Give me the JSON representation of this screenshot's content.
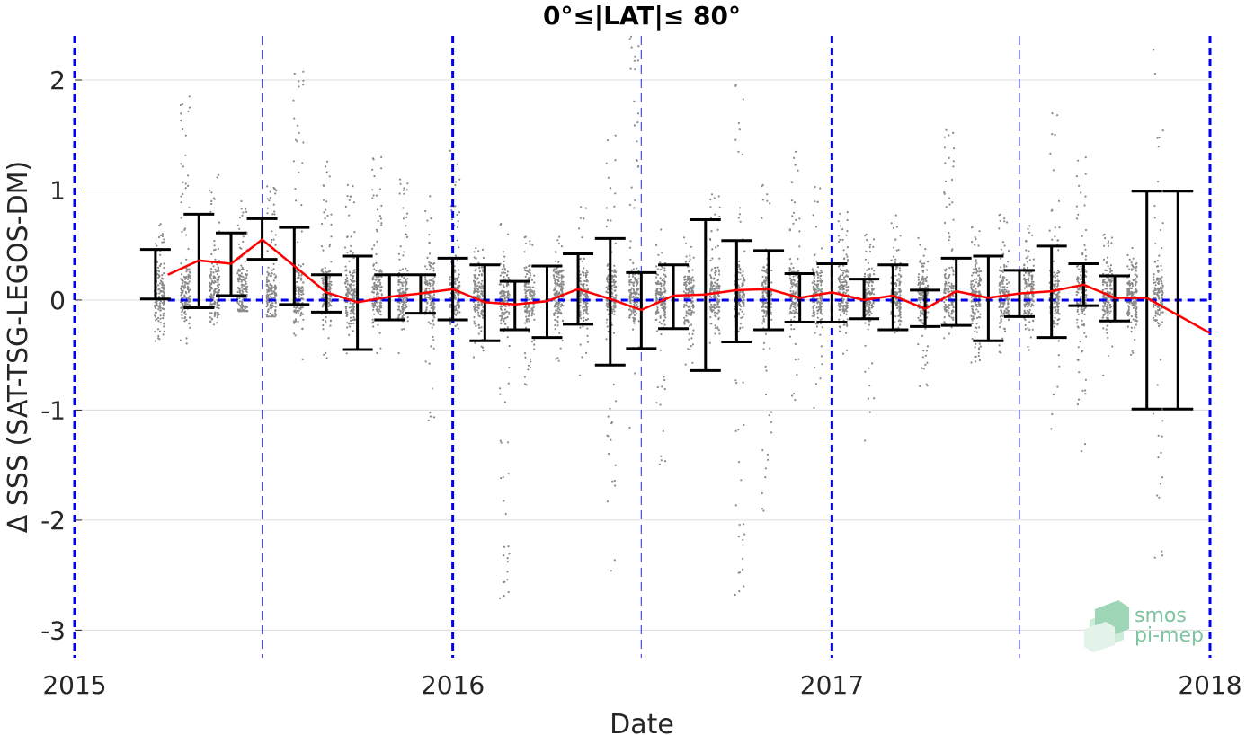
{
  "chart_data": {
    "type": "scatter",
    "title": "0°≤|LAT|≤ 80°",
    "xlabel": "Date",
    "ylabel": "Δ SSS (SAT-TSG-LEGOS-DM)",
    "xlim": [
      "2015-01-01",
      "2018-01-01"
    ],
    "ylim": [
      -3.25,
      2.4
    ],
    "x_tick_labels": [
      "2015",
      "2016",
      "2017",
      "2018"
    ],
    "y_ticks": [
      2,
      1,
      0,
      -1,
      -2,
      -3
    ],
    "y_tick_labels": [
      "2",
      "1",
      "0",
      "-1",
      "-2",
      "-3"
    ],
    "grid": true,
    "year_lines": [
      "2015-01-01",
      "2016-01-01",
      "2017-01-01",
      "2018-01-01"
    ],
    "midyear_lines": [
      "2015-07-01",
      "2016-07-01",
      "2017-07-01"
    ],
    "zero_line": 0,
    "series": [
      {
        "kind": "monthly_mean",
        "x": [
          "2015-04-01",
          "2015-05-01",
          "2015-06-01",
          "2015-07-01",
          "2015-08-01",
          "2015-09-01",
          "2015-10-01",
          "2015-11-01",
          "2015-12-01",
          "2016-01-01",
          "2016-02-01",
          "2016-03-01",
          "2016-04-01",
          "2016-05-01",
          "2016-06-01",
          "2016-07-01",
          "2016-08-01",
          "2016-09-01",
          "2016-10-01",
          "2016-11-01",
          "2016-12-01",
          "2017-01-01",
          "2017-02-01",
          "2017-03-01",
          "2017-04-01",
          "2017-05-01",
          "2017-06-01",
          "2017-07-01",
          "2017-08-01",
          "2017-09-01",
          "2017-10-01",
          "2017-11-01",
          "2018-01-01"
        ],
        "y": [
          0.23,
          0.36,
          0.33,
          0.55,
          0.31,
          0.07,
          -0.02,
          0.03,
          0.06,
          0.1,
          -0.02,
          -0.04,
          -0.01,
          0.1,
          0.01,
          -0.09,
          0.04,
          0.05,
          0.09,
          0.1,
          0.02,
          0.07,
          0.0,
          0.04,
          -0.08,
          0.08,
          0.02,
          0.06,
          0.08,
          0.14,
          0.02,
          0.02,
          -0.3
        ]
      },
      {
        "kind": "monthly_std_errorbars",
        "x": [
          "2015-03-20",
          "2015-05-01",
          "2015-06-01",
          "2015-07-01",
          "2015-08-01",
          "2015-09-01",
          "2015-10-01",
          "2015-11-01",
          "2015-12-01",
          "2016-01-01",
          "2016-02-01",
          "2016-03-01",
          "2016-04-01",
          "2016-05-01",
          "2016-06-01",
          "2016-07-01",
          "2016-08-01",
          "2016-09-01",
          "2016-10-01",
          "2016-11-01",
          "2016-12-01",
          "2017-01-01",
          "2017-02-01",
          "2017-03-01",
          "2017-04-01",
          "2017-05-01",
          "2017-06-01",
          "2017-07-01",
          "2017-08-01",
          "2017-09-01",
          "2017-10-01",
          "2017-11-01",
          "2017-12-01"
        ],
        "low": [
          0.01,
          -0.07,
          0.04,
          0.37,
          -0.04,
          -0.11,
          -0.45,
          -0.18,
          -0.12,
          -0.18,
          -0.37,
          -0.27,
          -0.34,
          -0.22,
          -0.59,
          -0.44,
          -0.26,
          -0.64,
          -0.38,
          -0.27,
          -0.2,
          -0.2,
          -0.17,
          -0.27,
          -0.24,
          -0.23,
          -0.37,
          -0.15,
          -0.34,
          -0.05,
          -0.19,
          -0.99,
          -0.99
        ],
        "high": [
          0.46,
          0.78,
          0.61,
          0.74,
          0.66,
          0.23,
          0.4,
          0.23,
          0.23,
          0.38,
          0.32,
          0.17,
          0.31,
          0.42,
          0.56,
          0.25,
          0.32,
          0.73,
          0.54,
          0.45,
          0.24,
          0.33,
          0.19,
          0.32,
          0.09,
          0.38,
          0.4,
          0.27,
          0.49,
          0.33,
          0.22,
          0.99,
          0.99
        ]
      },
      {
        "kind": "scatter_clusters",
        "x": [
          "2015-03-24",
          "2015-04-18",
          "2015-05-16",
          "2015-06-12",
          "2015-07-10",
          "2015-08-05",
          "2015-09-01",
          "2015-09-24",
          "2015-10-20",
          "2015-11-14",
          "2015-12-10",
          "2016-01-03",
          "2016-01-26",
          "2016-02-20",
          "2016-03-15",
          "2016-04-12",
          "2016-05-06",
          "2016-06-02",
          "2016-06-24",
          "2016-07-20",
          "2016-08-16",
          "2016-09-10",
          "2016-10-04",
          "2016-10-30",
          "2016-11-26",
          "2016-12-18",
          "2017-01-12",
          "2017-02-06",
          "2017-03-04",
          "2017-03-30",
          "2017-04-24",
          "2017-05-20",
          "2017-06-16",
          "2017-07-10",
          "2017-08-04",
          "2017-08-30",
          "2017-09-24",
          "2017-10-18",
          "2017-11-12"
        ],
        "low": [
          -0.4,
          -0.45,
          -0.3,
          -0.1,
          -0.15,
          -0.55,
          -0.6,
          -0.5,
          -0.5,
          -0.5,
          -1.1,
          -0.3,
          -0.6,
          -2.8,
          -0.9,
          -0.6,
          -0.7,
          -2.5,
          -1.2,
          -1.5,
          -0.6,
          -0.5,
          -2.8,
          -2.2,
          -1.0,
          -1.0,
          -0.5,
          -1.3,
          -0.3,
          -0.8,
          -0.5,
          -0.6,
          -0.6,
          -0.5,
          -1.2,
          -1.4,
          -0.7,
          -0.5,
          -2.4
        ],
        "high": [
          0.7,
          1.9,
          1.2,
          0.9,
          1.1,
          2.1,
          1.3,
          1.1,
          1.3,
          1.1,
          1.0,
          1.4,
          0.5,
          0.8,
          0.6,
          0.6,
          0.9,
          1.5,
          2.4,
          0.7,
          0.6,
          1.0,
          2.1,
          1.1,
          1.4,
          1.1,
          0.8,
          0.6,
          0.8,
          0.6,
          1.6,
          0.7,
          0.8,
          0.7,
          1.8,
          1.3,
          0.6,
          0.5,
          2.4
        ]
      }
    ],
    "colors": {
      "scatter": "#8a8a8a",
      "mean_line": "#ff0000",
      "errorbars": "#000000",
      "year_lines": "#0000ee",
      "midyear_lines": "#4a4aff",
      "zero_line": "#0000ee",
      "grid": "#dcdcdc"
    },
    "logo": {
      "line1": "smos",
      "line2": "pi-mep"
    }
  }
}
